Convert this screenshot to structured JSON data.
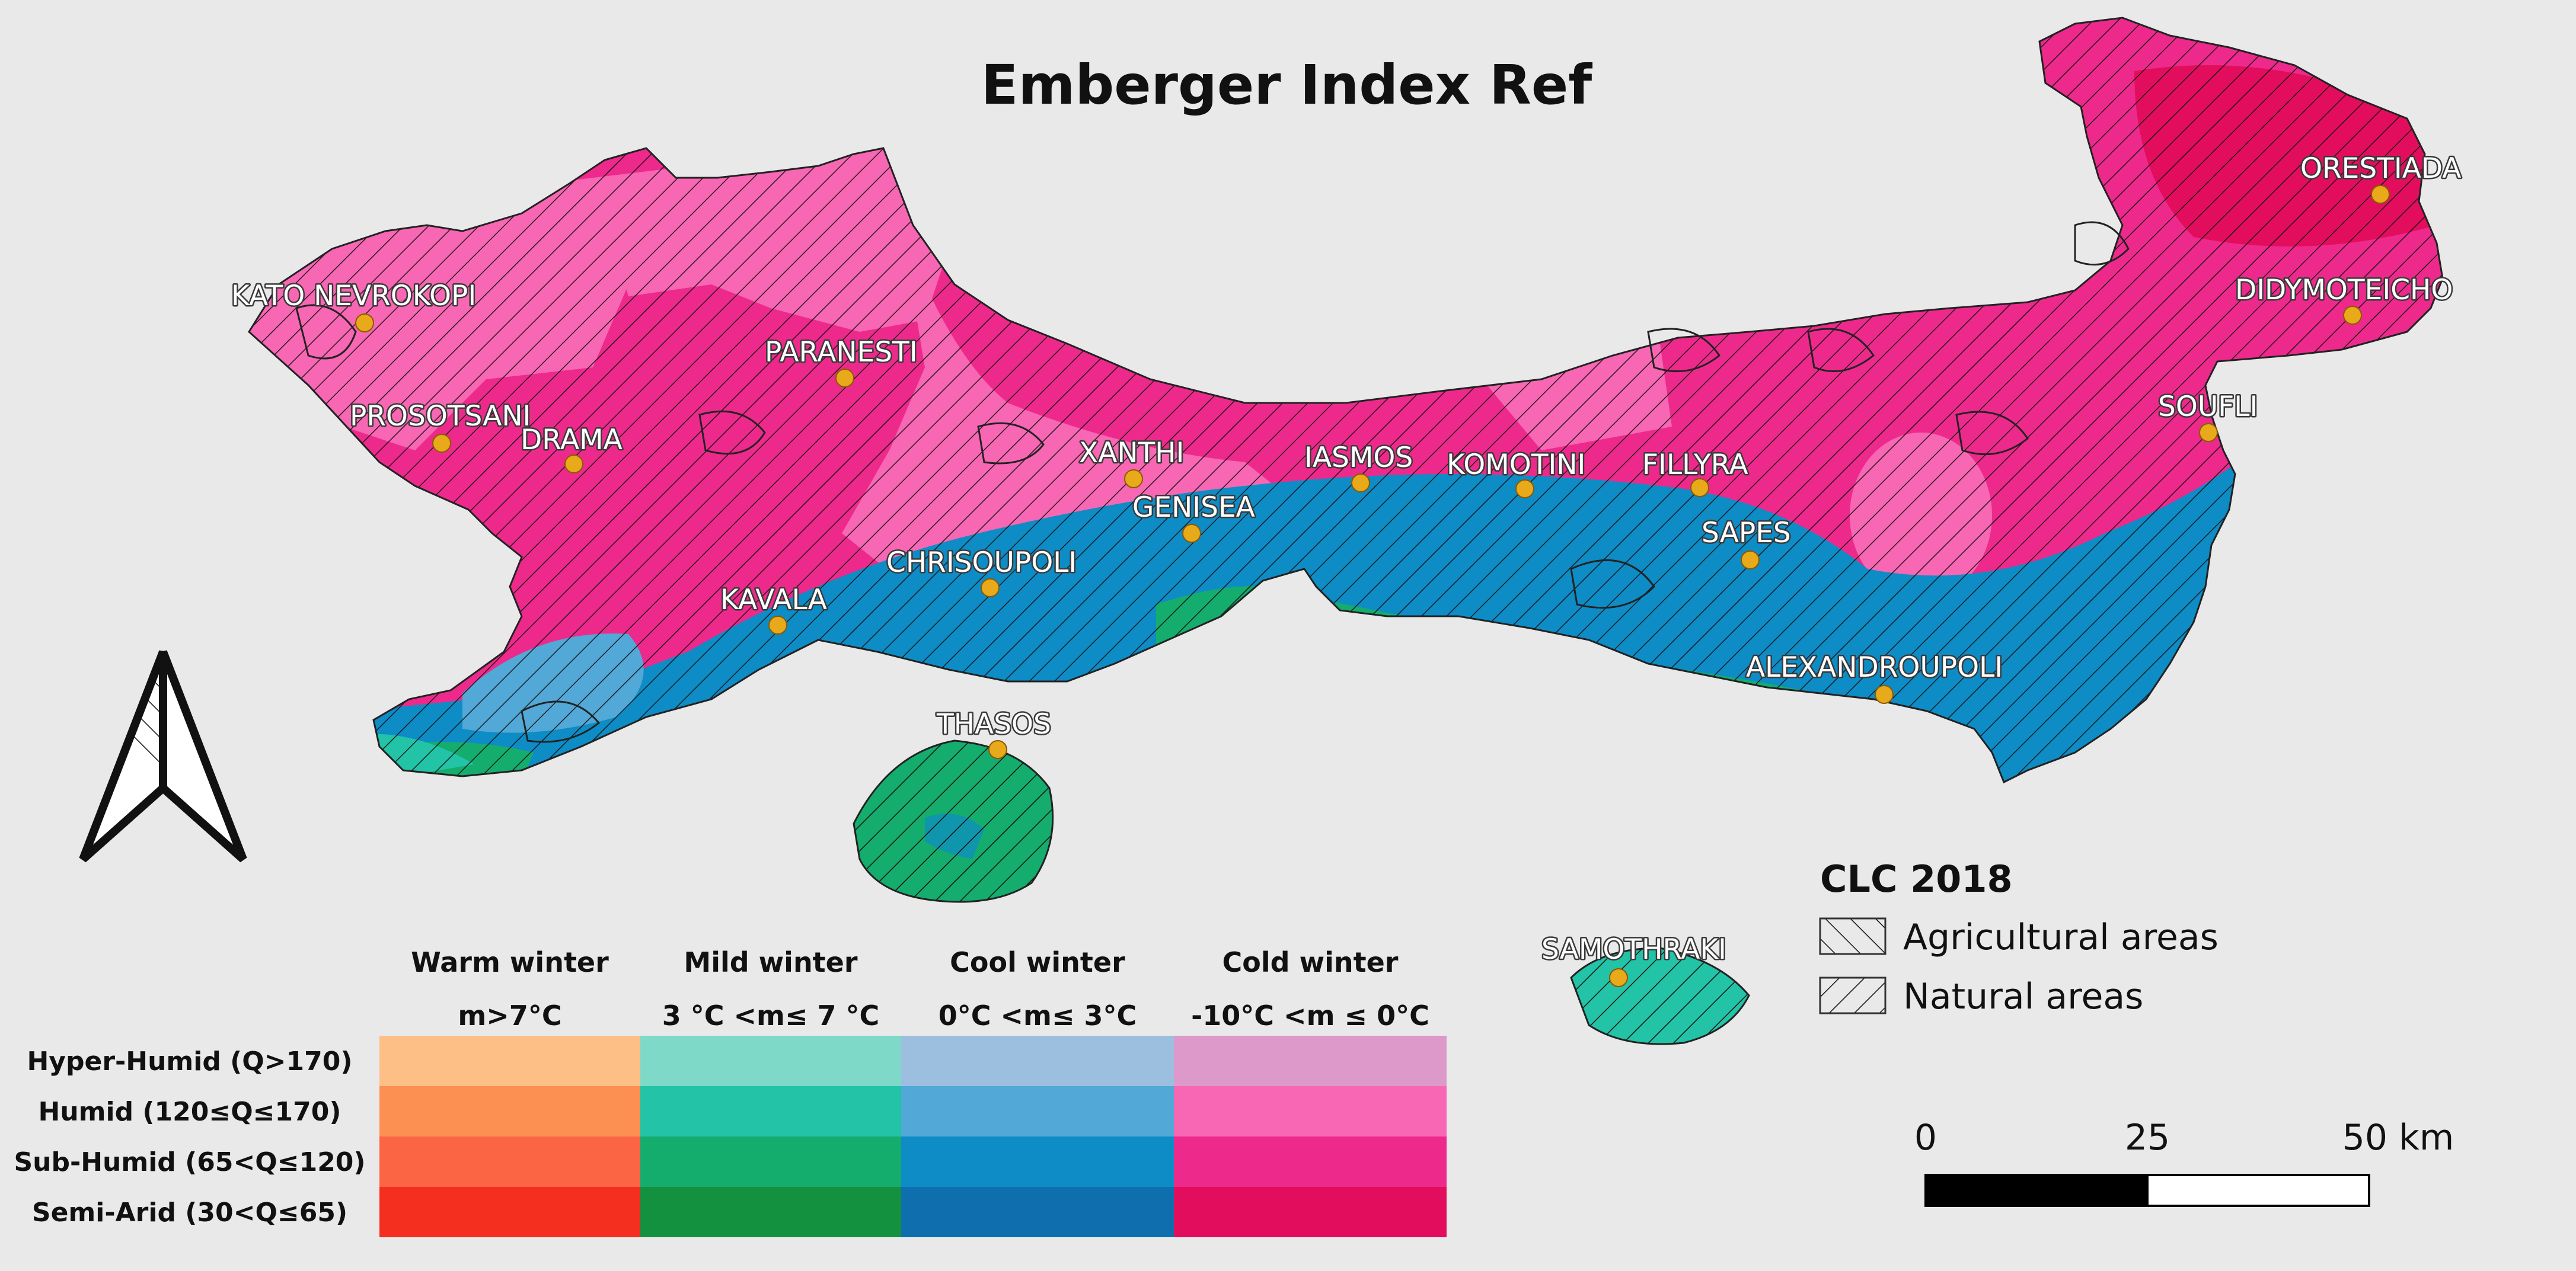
{
  "title": "Emberger Index Ref",
  "cities": [
    {
      "name": "KATO NEVROKOPI"
    },
    {
      "name": "PARANESTI"
    },
    {
      "name": "PROSOTSANI"
    },
    {
      "name": "DRAMA"
    },
    {
      "name": "XANTHI"
    },
    {
      "name": "IASMOS"
    },
    {
      "name": "KOMOTINI"
    },
    {
      "name": "FILLYRA"
    },
    {
      "name": "GENISEA"
    },
    {
      "name": "SAPES"
    },
    {
      "name": "CHRISOUPOLI"
    },
    {
      "name": "KAVALA"
    },
    {
      "name": "ALEXANDROUPOLI"
    },
    {
      "name": "THASOS"
    },
    {
      "name": "SAMOTHRAKI"
    },
    {
      "name": "ORESTIADA"
    },
    {
      "name": "DIDYMOTEICHO"
    },
    {
      "name": "SOUFLI"
    }
  ],
  "climate_legend": {
    "columns": [
      {
        "title": "Warm winter",
        "subtitle": "m>7°C"
      },
      {
        "title": "Mild winter",
        "subtitle": "3 °C <m≤ 7 °C"
      },
      {
        "title": "Cool winter",
        "subtitle": "0°C <m≤ 3°C"
      },
      {
        "title": "Cold winter",
        "subtitle": "-10°C <m ≤ 0°C"
      }
    ],
    "rows": [
      {
        "label": "Hyper-Humid  (Q>170)",
        "colors": [
          "#fdbf86",
          "#7fd9c9",
          "#9dbfdf",
          "#dc99c9"
        ]
      },
      {
        "label": "Humid (120≤Q≤170)",
        "colors": [
          "#fc8f52",
          "#22c3a6",
          "#52a8d6",
          "#f767b3"
        ]
      },
      {
        "label": "Sub-Humid (65<Q≤120)",
        "colors": [
          "#fb6543",
          "#14ad6e",
          "#0d8cc6",
          "#ed2a8c"
        ]
      },
      {
        "label": "Semi-Arid (30<Q≤65)",
        "colors": [
          "#f52f1f",
          "#14913f",
          "#0f6fae",
          "#e20e5d"
        ]
      }
    ]
  },
  "clc": {
    "title": "CLC 2018",
    "items": [
      {
        "label": "Agricultural areas"
      },
      {
        "label": "Natural areas"
      }
    ]
  },
  "scale": {
    "labels": [
      "0",
      "25",
      "50 km"
    ]
  },
  "colors": {
    "cold_humid": "#f767b3",
    "cold_subhumid": "#ed2a8c",
    "cold_semiarid": "#e20e5d",
    "cool_subhumid": "#0d8cc6",
    "cool_humid": "#52a8d6",
    "mild_subhumid": "#14ad6e",
    "mild_humid": "#22c3a6",
    "city_dot": "#e8a91a",
    "background": "#e9e9e9"
  }
}
